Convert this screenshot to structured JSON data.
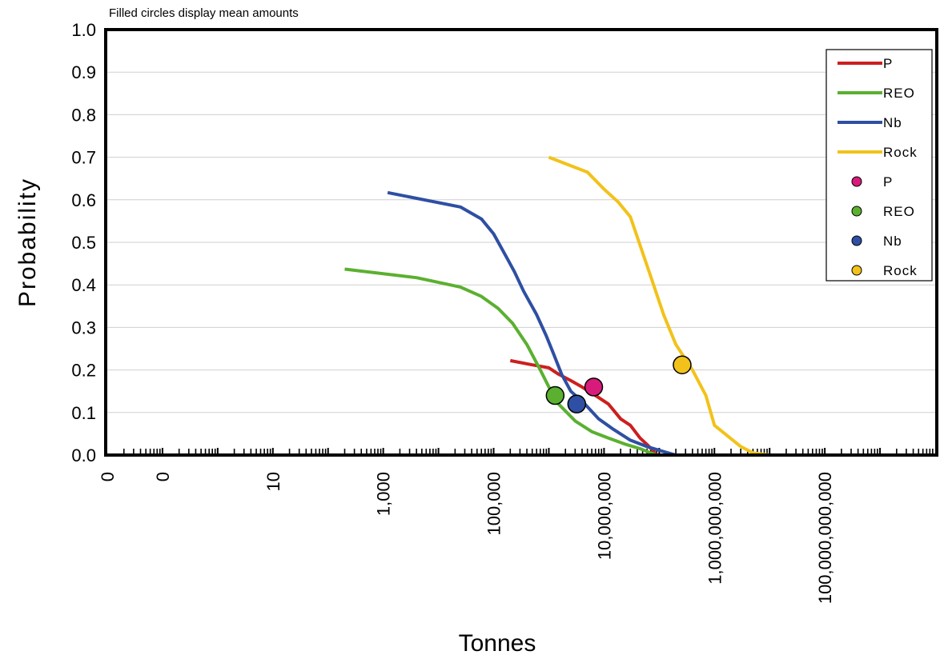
{
  "chart_data": {
    "type": "line",
    "subtitle": "Filled circles display mean amounts",
    "xlabel": "Tonnes",
    "ylabel": "Probability",
    "x_scale": "log10",
    "xlim": [
      0.01,
      10000000000000
    ],
    "ylim": [
      0,
      1
    ],
    "grid": true,
    "legend_position": "top-right",
    "y_ticks": [
      "0.0",
      "0.1",
      "0.2",
      "0.3",
      "0.4",
      "0.5",
      "0.6",
      "0.7",
      "0.8",
      "0.9",
      "1.0"
    ],
    "x_ticks": [
      {
        "value": 0.01,
        "label": "0"
      },
      {
        "value": 0.1,
        "label": "0"
      },
      {
        "value": 10,
        "label": "10"
      },
      {
        "value": 1000,
        "label": "1,000"
      },
      {
        "value": 100000,
        "label": "100,000"
      },
      {
        "value": 10000000,
        "label": "10,000,000"
      },
      {
        "value": 1000000000,
        "label": "1,000,000,000"
      },
      {
        "value": 100000000000,
        "label": "100,000,000,000"
      }
    ],
    "series": [
      {
        "name": "P",
        "color": "#cc1f1f",
        "points": [
          [
            200000,
            0.222
          ],
          [
            500000,
            0.212
          ],
          [
            1000000,
            0.205
          ],
          [
            1500000,
            0.19
          ],
          [
            2500000,
            0.175
          ],
          [
            4000000,
            0.16
          ],
          [
            7000000,
            0.14
          ],
          [
            12000000,
            0.12
          ],
          [
            20000000,
            0.085
          ],
          [
            30000000,
            0.07
          ],
          [
            45000000,
            0.04
          ],
          [
            60000000,
            0.025
          ],
          [
            75000000,
            0.012
          ],
          [
            90000000,
            0.0
          ]
        ]
      },
      {
        "name": "REO",
        "color": "#5bb030",
        "points": [
          [
            200,
            0.437
          ],
          [
            4000,
            0.417
          ],
          [
            25000,
            0.395
          ],
          [
            60000,
            0.373
          ],
          [
            120000,
            0.345
          ],
          [
            220000,
            0.31
          ],
          [
            400000,
            0.26
          ],
          [
            700000,
            0.2
          ],
          [
            1000000,
            0.16
          ],
          [
            1500000,
            0.12
          ],
          [
            3000000,
            0.08
          ],
          [
            6000000,
            0.055
          ],
          [
            12000000,
            0.04
          ],
          [
            25000000,
            0.025
          ],
          [
            45000000,
            0.015
          ],
          [
            70000000,
            0.005
          ],
          [
            90000000,
            0.0
          ]
        ]
      },
      {
        "name": "Nb",
        "color": "#2e4fa3",
        "points": [
          [
            1200,
            0.617
          ],
          [
            25000,
            0.583
          ],
          [
            60000,
            0.555
          ],
          [
            100000,
            0.52
          ],
          [
            180000,
            0.46
          ],
          [
            240000,
            0.43
          ],
          [
            350000,
            0.385
          ],
          [
            600000,
            0.33
          ],
          [
            900000,
            0.28
          ],
          [
            1200000,
            0.24
          ],
          [
            1700000,
            0.19
          ],
          [
            2500000,
            0.15
          ],
          [
            4500000,
            0.12
          ],
          [
            8000000,
            0.085
          ],
          [
            15000000,
            0.06
          ],
          [
            30000000,
            0.035
          ],
          [
            60000000,
            0.02
          ],
          [
            120000000,
            0.008
          ],
          [
            200000000,
            0.0
          ]
        ]
      },
      {
        "name": "Rock",
        "color": "#f2c21b",
        "points": [
          [
            1000000,
            0.7
          ],
          [
            5000000,
            0.665
          ],
          [
            10000000,
            0.625
          ],
          [
            18000000,
            0.595
          ],
          [
            30000000,
            0.56
          ],
          [
            70000000,
            0.42
          ],
          [
            120000000,
            0.33
          ],
          [
            200000000,
            0.26
          ],
          [
            400000000,
            0.2
          ],
          [
            700000000,
            0.14
          ],
          [
            1000000000,
            0.07
          ],
          [
            3000000000,
            0.02
          ],
          [
            5000000000,
            0.005
          ],
          [
            10000000000,
            0.0
          ]
        ]
      }
    ],
    "mean_points": [
      {
        "name": "P",
        "color": "#d81b7a",
        "x": 6500000,
        "y": 0.16
      },
      {
        "name": "REO",
        "color": "#5bb030",
        "x": 1300000,
        "y": 0.14
      },
      {
        "name": "Nb",
        "color": "#2e4fa3",
        "x": 3200000,
        "y": 0.12
      },
      {
        "name": "Rock",
        "color": "#f2c21b",
        "x": 260000000,
        "y": 0.212
      }
    ]
  }
}
